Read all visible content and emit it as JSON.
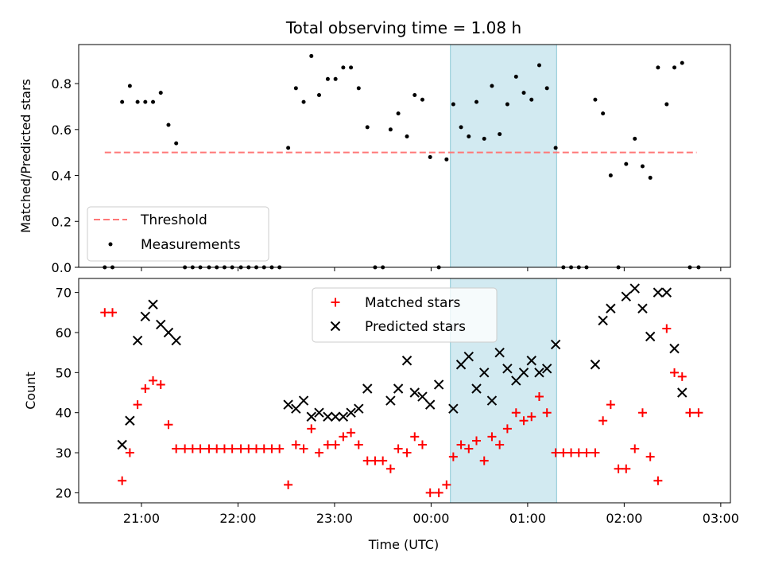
{
  "figure": {
    "title": "Total observing time = 1.08 h",
    "xlabel": "Time (UTC)",
    "x_ticks": [
      "21:00",
      "22:00",
      "23:00",
      "00:00",
      "01:00",
      "02:00",
      "03:00"
    ]
  },
  "chart_data": [
    {
      "type": "scatter",
      "panel": "top",
      "ylabel": "Matched/Predicted stars",
      "xlim": [
        20.35,
        27.1
      ],
      "ylim": [
        0,
        0.97
      ],
      "y_ticks": [
        "0.0",
        "0.2",
        "0.4",
        "0.6",
        "0.8"
      ],
      "legend_position": "lower-left",
      "legend": {
        "threshold": "Threshold",
        "measurements": "Measurements"
      },
      "threshold": {
        "value": 0.5,
        "x_range": [
          20.62,
          26.75
        ],
        "color": "#ff7777"
      },
      "highlight_span": [
        24.2,
        25.3
      ],
      "highlight_color": "#add8e6",
      "measurements": {
        "x": [
          20.62,
          20.7,
          20.8,
          20.88,
          20.96,
          21.04,
          21.12,
          21.2,
          21.28,
          21.36,
          21.45,
          21.53,
          21.61,
          21.7,
          21.78,
          21.86,
          21.94,
          22.03,
          22.11,
          22.19,
          22.27,
          22.35,
          22.43,
          22.52,
          22.6,
          22.68,
          22.76,
          22.84,
          22.93,
          23.01,
          23.09,
          23.17,
          23.25,
          23.34,
          23.42,
          23.5,
          23.58,
          23.66,
          23.75,
          23.83,
          23.91,
          23.99,
          24.08,
          24.16,
          24.23,
          24.31,
          24.39,
          24.47,
          24.55,
          24.63,
          24.71,
          24.79,
          24.88,
          24.96,
          25.04,
          25.12,
          25.2,
          25.29,
          25.37,
          25.45,
          25.53,
          25.61,
          25.7,
          25.78,
          25.86,
          25.94,
          26.02,
          26.11,
          26.19,
          26.27,
          26.35,
          26.44,
          26.52,
          26.6,
          26.68,
          26.77
        ],
        "y": [
          0,
          0,
          0.72,
          0.79,
          0.72,
          0.72,
          0.72,
          0.76,
          0.62,
          0.54,
          0,
          0,
          0,
          0,
          0,
          0,
          0,
          0,
          0,
          0,
          0,
          0,
          0,
          0.52,
          0.78,
          0.72,
          0.92,
          0.75,
          0.82,
          0.82,
          0.87,
          0.87,
          0.78,
          0.61,
          0,
          0,
          0.6,
          0.67,
          0.57,
          0.75,
          0.73,
          0.48,
          0,
          0.47,
          0.71,
          0.61,
          0.57,
          0.72,
          0.56,
          0.79,
          0.58,
          0.71,
          0.83,
          0.76,
          0.73,
          0.88,
          0.78,
          0.52,
          0,
          0,
          0,
          0,
          0.73,
          0.67,
          0.4,
          0,
          0.45,
          0.56,
          0.44,
          0.39,
          0.87,
          0.71,
          0.87,
          0.89,
          0,
          0
        ]
      }
    },
    {
      "type": "scatter",
      "panel": "bottom",
      "ylabel": "Count",
      "xlim": [
        20.35,
        27.1
      ],
      "ylim": [
        17.5,
        73.5
      ],
      "y_ticks": [
        "20",
        "30",
        "40",
        "50",
        "60",
        "70"
      ],
      "legend_position": "upper-center",
      "highlight_span": [
        24.2,
        25.3
      ],
      "highlight_color": "#add8e6",
      "series": [
        {
          "name": "Matched stars",
          "marker": "plus",
          "color": "#ff0000",
          "x": [
            20.62,
            20.7,
            20.8,
            20.88,
            20.96,
            21.04,
            21.12,
            21.2,
            21.28,
            21.36,
            21.45,
            21.53,
            21.61,
            21.7,
            21.78,
            21.86,
            21.94,
            22.03,
            22.11,
            22.19,
            22.27,
            22.35,
            22.43,
            22.52,
            22.6,
            22.68,
            22.76,
            22.84,
            22.93,
            23.01,
            23.09,
            23.17,
            23.25,
            23.34,
            23.42,
            23.5,
            23.58,
            23.66,
            23.75,
            23.83,
            23.91,
            23.99,
            24.08,
            24.16,
            24.23,
            24.31,
            24.39,
            24.47,
            24.55,
            24.63,
            24.71,
            24.79,
            24.88,
            24.96,
            25.04,
            25.12,
            25.2,
            25.29,
            25.37,
            25.45,
            25.53,
            25.61,
            25.7,
            25.78,
            25.86,
            25.94,
            26.02,
            26.11,
            26.19,
            26.27,
            26.35,
            26.44,
            26.52,
            26.6,
            26.68,
            26.77
          ],
          "y": [
            65,
            65,
            23,
            30,
            42,
            46,
            48,
            47,
            37,
            31,
            31,
            31,
            31,
            31,
            31,
            31,
            31,
            31,
            31,
            31,
            31,
            31,
            31,
            22,
            32,
            31,
            36,
            30,
            32,
            32,
            34,
            35,
            32,
            28,
            28,
            28,
            26,
            31,
            30,
            34,
            32,
            20,
            20,
            22,
            29,
            32,
            31,
            33,
            28,
            34,
            32,
            36,
            40,
            38,
            39,
            44,
            40,
            30,
            30,
            30,
            30,
            30,
            30,
            38,
            42,
            26,
            26,
            31,
            40,
            29,
            23,
            61,
            50,
            49,
            40,
            40
          ]
        },
        {
          "name": "Predicted stars",
          "marker": "x",
          "color": "#000000",
          "x": [
            20.8,
            20.88,
            20.96,
            21.04,
            21.12,
            21.2,
            21.28,
            21.36,
            22.52,
            22.6,
            22.68,
            22.76,
            22.84,
            22.93,
            23.01,
            23.09,
            23.17,
            23.25,
            23.34,
            23.58,
            23.66,
            23.75,
            23.83,
            23.91,
            23.99,
            24.08,
            24.23,
            24.31,
            24.39,
            24.47,
            24.55,
            24.63,
            24.71,
            24.79,
            24.88,
            24.96,
            25.04,
            25.12,
            25.2,
            25.29,
            25.7,
            25.78,
            25.86,
            26.02,
            26.11,
            26.19,
            26.27,
            26.35,
            26.44,
            26.52,
            26.6
          ],
          "y": [
            32,
            38,
            58,
            64,
            67,
            62,
            60,
            58,
            42,
            41,
            43,
            39,
            40,
            39,
            39,
            39,
            40,
            41,
            46,
            43,
            46,
            53,
            45,
            44,
            42,
            47,
            41,
            52,
            54,
            46,
            50,
            43,
            55,
            51,
            48,
            50,
            53,
            50,
            51,
            57,
            52,
            63,
            66,
            69,
            71,
            66,
            59,
            70,
            70,
            56,
            45
          ]
        }
      ]
    }
  ]
}
